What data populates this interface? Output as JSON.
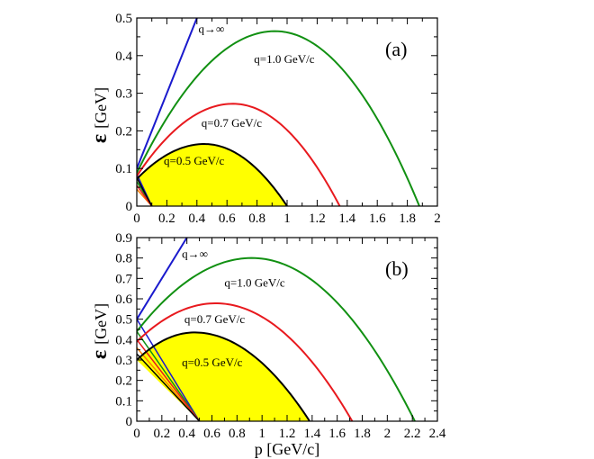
{
  "chart_data": [
    {
      "type": "line",
      "panel_label": "(a)",
      "xlim": [
        0,
        2
      ],
      "ylim": [
        0,
        0.5
      ],
      "xticks": [
        0,
        0.2,
        0.4,
        0.6,
        0.8,
        1,
        1.2,
        1.4,
        1.6,
        1.8,
        2
      ],
      "xtick_labels": [
        "0",
        "0.2",
        "0.4",
        "0.6",
        "0.8",
        "1",
        "1.2",
        "1.4",
        "1.6",
        "1.8",
        "2"
      ],
      "yticks": [
        0,
        0.1,
        0.2,
        0.3,
        0.4,
        0.5
      ],
      "ytick_labels": [
        "0",
        "0.1",
        "0.2",
        "0.3",
        "0.4",
        "0.5"
      ],
      "ylabel_symbol": "ε",
      "ylabel_unit": "[GeV]",
      "xlabel": "",
      "p_zero": 0.1,
      "series": [
        {
          "name": "q=0.5 GeV/c",
          "label": "q=0.5 GeV/c",
          "color": "#000000",
          "filled": true,
          "fill_color": "#ffff00",
          "p_max": 1.0,
          "peak_p": 0.45,
          "peak_e": 0.165,
          "start_e": 0.072,
          "label_pos": [
            0.18,
            0.11
          ]
        },
        {
          "name": "q=0.7 GeV/c",
          "label": "q=0.7 GeV/c",
          "color": "#e8191e",
          "p_max": 1.35,
          "peak_p": 0.64,
          "peak_e": 0.272,
          "start_e": 0.08,
          "label_pos": [
            0.43,
            0.21
          ]
        },
        {
          "name": "q=1.0 GeV/c",
          "label": "q=1.0 GeV/c",
          "color": "#119012",
          "p_max": 1.88,
          "peak_p": 0.92,
          "peak_e": 0.465,
          "start_e": 0.088,
          "label_pos": [
            0.78,
            0.38
          ]
        },
        {
          "name": "q→∞",
          "label": "q→∞",
          "color": "#1a1acd",
          "type": "line",
          "points": [
            [
              0,
              0.1
            ],
            [
              0.4,
              0.5
            ]
          ],
          "label_pos": [
            0.41,
            0.46
          ]
        }
      ],
      "fan_lines": [
        {
          "color": "#ff7f00",
          "start_e": 0.045
        },
        {
          "color": "#1a1acd",
          "start_e": 0.085
        },
        {
          "color": "#119012",
          "start_e": 0.065
        },
        {
          "color": "#e8191e",
          "start_e": 0.055
        },
        {
          "color": "#000000",
          "start_e": 0.075
        }
      ]
    },
    {
      "type": "line",
      "panel_label": "(b)",
      "xlim": [
        0,
        2.4
      ],
      "ylim": [
        0,
        0.9
      ],
      "xticks": [
        0,
        0.2,
        0.4,
        0.6,
        0.8,
        1,
        1.2,
        1.4,
        1.6,
        1.8,
        2,
        2.2,
        2.4
      ],
      "xtick_labels": [
        "0",
        "0.2",
        "0.4",
        "0.6",
        "0.8",
        "1",
        "1.2",
        "1.4",
        "1.6",
        "1.8",
        "2",
        "2.2",
        "2.4"
      ],
      "yticks": [
        0,
        0.1,
        0.2,
        0.3,
        0.4,
        0.5,
        0.6,
        0.7,
        0.8,
        0.9
      ],
      "ytick_labels": [
        "0",
        "0.1",
        "0.2",
        "0.3",
        "0.4",
        "0.5",
        "0.6",
        "0.7",
        "0.8",
        "0.9"
      ],
      "ylabel_symbol": "ε",
      "ylabel_unit": "[GeV]",
      "xlabel": "p [GeV/c]",
      "p_zero": 0.5,
      "series": [
        {
          "name": "q=0.5 GeV/c",
          "label": "q=0.5 GeV/c",
          "color": "#000000",
          "filled": true,
          "fill_color": "#ffff00",
          "p_max": 1.38,
          "peak_p": 0.46,
          "peak_e": 0.435,
          "start_e": 0.3,
          "label_pos": [
            0.36,
            0.27
          ]
        },
        {
          "name": "q=0.7 GeV/c",
          "label": "q=0.7 GeV/c",
          "color": "#e8191e",
          "p_max": 1.72,
          "peak_p": 0.63,
          "peak_e": 0.578,
          "start_e": 0.39,
          "label_pos": [
            0.38,
            0.48
          ]
        },
        {
          "name": "q=1.0 GeV/c",
          "label": "q=1.0 GeV/c",
          "color": "#119012",
          "p_max": 2.22,
          "peak_p": 0.92,
          "peak_e": 0.8,
          "start_e": 0.44,
          "label_pos": [
            0.7,
            0.66
          ]
        },
        {
          "name": "q→∞",
          "label": "q→∞",
          "color": "#1a1acd",
          "type": "line",
          "points": [
            [
              0,
              0.5
            ],
            [
              0.4,
              0.9
            ]
          ],
          "label_pos": [
            0.36,
            0.8
          ]
        }
      ],
      "fan_lines": [
        {
          "color": "#ff7f00",
          "start_e": 0.36
        },
        {
          "color": "#1a1acd",
          "start_e": 0.5
        },
        {
          "color": "#119012",
          "start_e": 0.44
        },
        {
          "color": "#e8191e",
          "start_e": 0.4
        },
        {
          "color": "#000000",
          "start_e": 0.33
        }
      ]
    }
  ]
}
